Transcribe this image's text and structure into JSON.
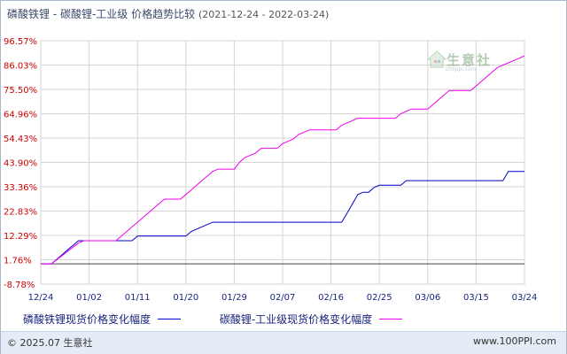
{
  "title": {
    "main": "磷酸铁锂 - 碳酸锂-工业级 价格趋势比较",
    "range": "(2021-12-24 - 2022-03-24)"
  },
  "watermark": {
    "text": "生意社",
    "sub": "100ppi.com"
  },
  "legend": {
    "series1": "磷酸铁锂现货价格变化幅度",
    "series2": "碳酸锂-工业级现货价格变化幅度"
  },
  "footer": {
    "copyright": "© 2025.07 生意社",
    "site": "www.100PPI.com"
  },
  "colors": {
    "series1": "#0000cc",
    "series2": "#ee00ee",
    "grid": "#d5d5d5",
    "tick_text": "#cc0000",
    "x_tick_text": "#1a237e",
    "baseline": "#444444"
  },
  "chart_data": {
    "type": "line",
    "title": "磷酸铁锂 - 碳酸锂-工业级 价格趋势比较",
    "xlabel": "",
    "ylabel": "",
    "x_ticks": [
      "12/24",
      "01/02",
      "01/11",
      "01/20",
      "01/29",
      "02/07",
      "02/16",
      "02/25",
      "03/06",
      "03/15",
      "03/24"
    ],
    "y_ticks": [
      "96.57%",
      "86.03%",
      "75.50%",
      "64.96%",
      "54.43%",
      "43.90%",
      "33.36%",
      "22.83%",
      "12.29%",
      "1.76%",
      "-8.78%"
    ],
    "y_tick_values": [
      96.57,
      86.03,
      75.5,
      64.96,
      54.43,
      43.9,
      33.36,
      22.83,
      12.29,
      1.76,
      -8.78
    ],
    "ylim": [
      -8.78,
      96.57
    ],
    "xlim": [
      0,
      90
    ],
    "grid": true,
    "legend_position": "bottom",
    "series": [
      {
        "name": "磷酸铁锂现货价格变化幅度",
        "points": [
          [
            0,
            0
          ],
          [
            1,
            0
          ],
          [
            2,
            0
          ],
          [
            3,
            2
          ],
          [
            4,
            4
          ],
          [
            5,
            6
          ],
          [
            6,
            8
          ],
          [
            7,
            10
          ],
          [
            8,
            10
          ],
          [
            17,
            10
          ],
          [
            18,
            12
          ],
          [
            27,
            12
          ],
          [
            28,
            14
          ],
          [
            30,
            16
          ],
          [
            32,
            18
          ],
          [
            56,
            18
          ],
          [
            57,
            22
          ],
          [
            58,
            26
          ],
          [
            59,
            30
          ],
          [
            60,
            31
          ],
          [
            61,
            31
          ],
          [
            62,
            33
          ],
          [
            63,
            34
          ],
          [
            67,
            34
          ],
          [
            68,
            36
          ],
          [
            86,
            36
          ],
          [
            87,
            40
          ],
          [
            90,
            40
          ]
        ]
      },
      {
        "name": "碳酸锂-工业级现货价格变化幅度",
        "points": [
          [
            0,
            0
          ],
          [
            2,
            0
          ],
          [
            3,
            1.8
          ],
          [
            4,
            3.6
          ],
          [
            5,
            5.4
          ],
          [
            6,
            7.2
          ],
          [
            7,
            9
          ],
          [
            8,
            10
          ],
          [
            9,
            10
          ],
          [
            14,
            10
          ],
          [
            15,
            12
          ],
          [
            16,
            14
          ],
          [
            17,
            16
          ],
          [
            18,
            18
          ],
          [
            19,
            20
          ],
          [
            20,
            22
          ],
          [
            21,
            24
          ],
          [
            22,
            26
          ],
          [
            23,
            28
          ],
          [
            24,
            28
          ],
          [
            26,
            28
          ],
          [
            27,
            30
          ],
          [
            28,
            32
          ],
          [
            29,
            34
          ],
          [
            30,
            36
          ],
          [
            31,
            38
          ],
          [
            32,
            40
          ],
          [
            33,
            41
          ],
          [
            36,
            41
          ],
          [
            37,
            44
          ],
          [
            38,
            46
          ],
          [
            40,
            48
          ],
          [
            41,
            50
          ],
          [
            42,
            50
          ],
          [
            44,
            50
          ],
          [
            45,
            52
          ],
          [
            46,
            53
          ],
          [
            47,
            54
          ],
          [
            48,
            56
          ],
          [
            49,
            57
          ],
          [
            50,
            58
          ],
          [
            55,
            58
          ],
          [
            56,
            60
          ],
          [
            57,
            61
          ],
          [
            58,
            62
          ],
          [
            59,
            63
          ],
          [
            66,
            63
          ],
          [
            67,
            65
          ],
          [
            68,
            66
          ],
          [
            69,
            67
          ],
          [
            72,
            67
          ],
          [
            73,
            69
          ],
          [
            74,
            71
          ],
          [
            75,
            73
          ],
          [
            76,
            75
          ],
          [
            80,
            75
          ],
          [
            81,
            77
          ],
          [
            82,
            79
          ],
          [
            83,
            81
          ],
          [
            84,
            83
          ],
          [
            85,
            85
          ],
          [
            86,
            86
          ],
          [
            87,
            87
          ],
          [
            88,
            88
          ],
          [
            89,
            89
          ],
          [
            90,
            90
          ]
        ]
      }
    ]
  }
}
